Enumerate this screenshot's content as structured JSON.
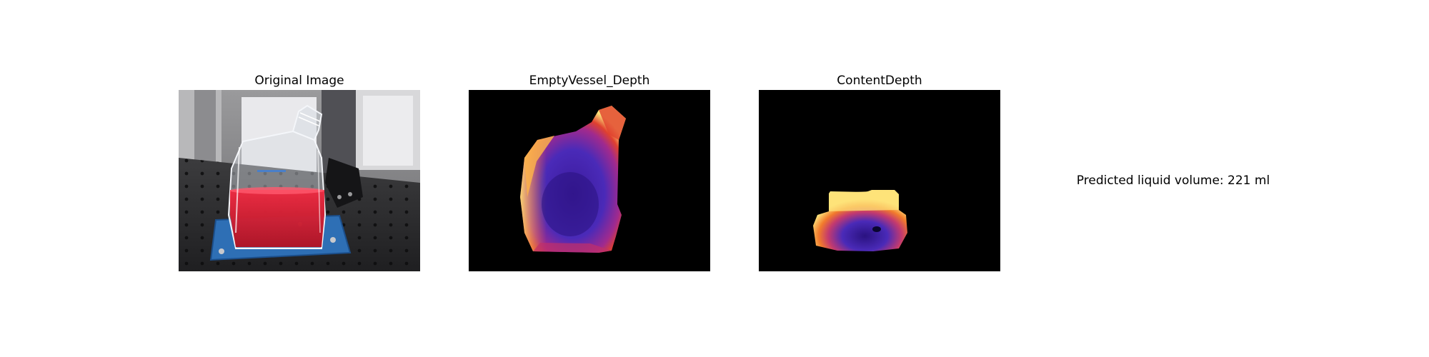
{
  "panels": [
    {
      "title": "Original Image"
    },
    {
      "title": "EmptyVessel_Depth"
    },
    {
      "title": "ContentDepth"
    }
  ],
  "prediction": {
    "text": "Predicted liquid volume: 221 ml"
  },
  "colors": {
    "background": "#ffffff",
    "depth_background": "#000000",
    "liquid_red": "#d8192c",
    "plate_blue": "#2e6fb5",
    "depth_far": "#3b1a9c",
    "depth_mid": "#e0412e",
    "depth_near": "#fde37a"
  },
  "icons": {
    "panel_1": "photo-flask-with-red-liquid",
    "panel_2": "depth-map-empty-vessel",
    "panel_3": "depth-map-content"
  }
}
